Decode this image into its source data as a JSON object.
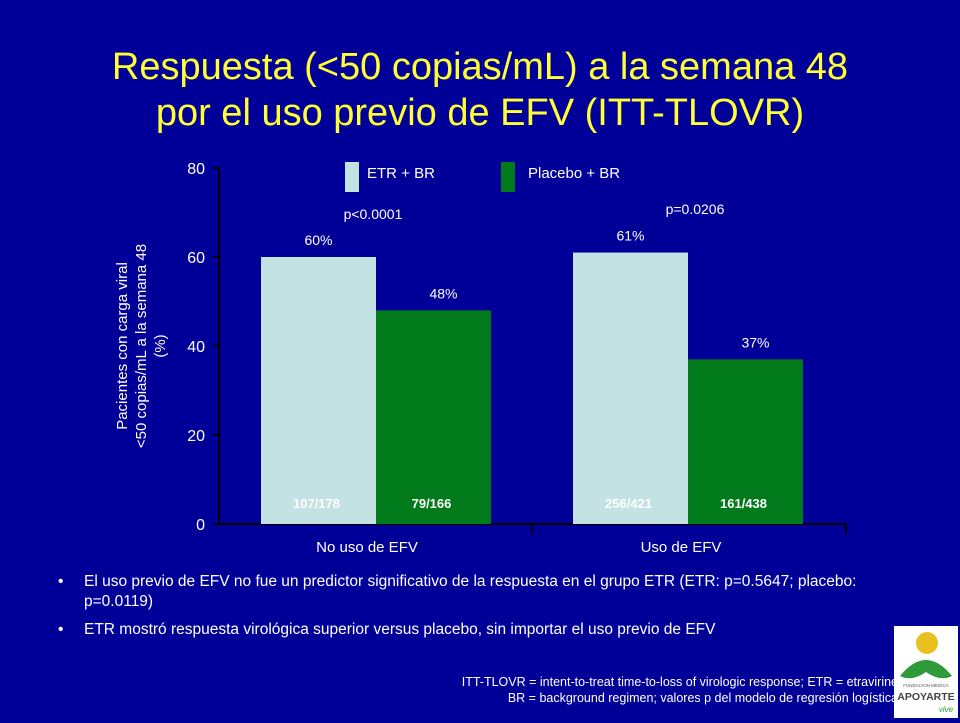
{
  "title": {
    "line1": "Respuesta (<50 copias/mL) a la semana 48",
    "line2": "por el uso previo de EFV (ITT-TLOVR)"
  },
  "chart_data": {
    "type": "bar",
    "ylabel_lines": [
      "Pacientes con carga viral",
      "<50 copias/mL a la semana 48",
      "(%)"
    ],
    "ylim": [
      0,
      80
    ],
    "yticks": [
      0,
      20,
      40,
      60,
      80
    ],
    "categories": [
      "No uso de EFV",
      "Uso de EFV"
    ],
    "series": [
      {
        "name": "ETR + BR",
        "color": "#c2e2e4",
        "values": [
          60,
          61
        ],
        "labels": [
          "60%",
          "61%"
        ],
        "counts": [
          "107/178",
          "256/421"
        ]
      },
      {
        "name": "Placebo + BR",
        "color": "#007a1a",
        "values": [
          48,
          37
        ],
        "labels": [
          "48%",
          "37%"
        ],
        "counts": [
          "79/166",
          "161/438"
        ]
      }
    ],
    "annotations": [
      "p<0.0001",
      "p=0.0206"
    ],
    "legend_position": "top"
  },
  "bullets": [
    "El uso previo de EFV no fue un predictor significativo de la respuesta en el grupo ETR (ETR: p=0.5647; placebo: p=0.0119)",
    "ETR mostró respuesta virológica superior versus placebo, sin importar el uso previo de EFV"
  ],
  "bullet_char": "•",
  "footnote": {
    "line1": "ITT-TLOVR = intent-to-treat time-to-loss of virologic response; ETR = etravirine",
    "line2": "BR = background regimen; valores p del modelo de regresión logística"
  },
  "logo": {
    "top_text": "FUNDACION MEDICA",
    "name": "APOYARTE",
    "tag": "vive"
  },
  "colors": {
    "background": "#000099",
    "title": "#ffff33",
    "axis": "#000000",
    "text": "#ffffff"
  }
}
